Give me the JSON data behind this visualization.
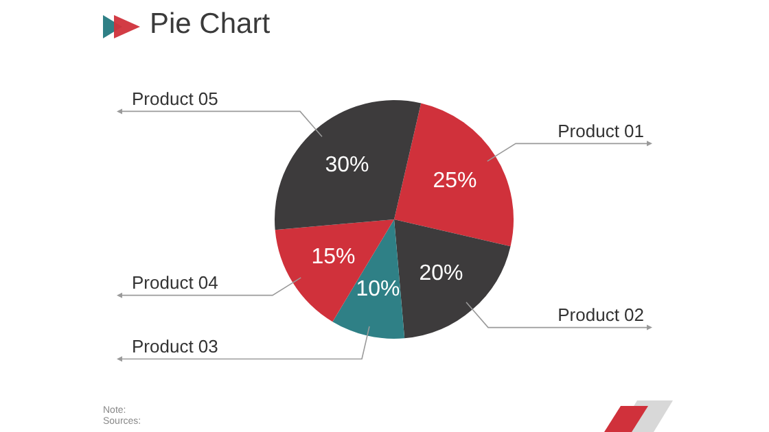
{
  "chart_data": {
    "type": "pie",
    "title": "Pie Chart",
    "categories": [
      "Product 01",
      "Product 02",
      "Product 03",
      "Product 04",
      "Product 05"
    ],
    "values": [
      25,
      20,
      10,
      15,
      30
    ],
    "colors": [
      "#d0313b",
      "#3d3b3c",
      "#2f8086",
      "#d0313b",
      "#3d3b3c"
    ],
    "value_labels": [
      "25%",
      "20%",
      "10%",
      "15%",
      "30%"
    ],
    "legend": false,
    "annotations": [
      "Note:",
      "Sources:"
    ]
  }
}
